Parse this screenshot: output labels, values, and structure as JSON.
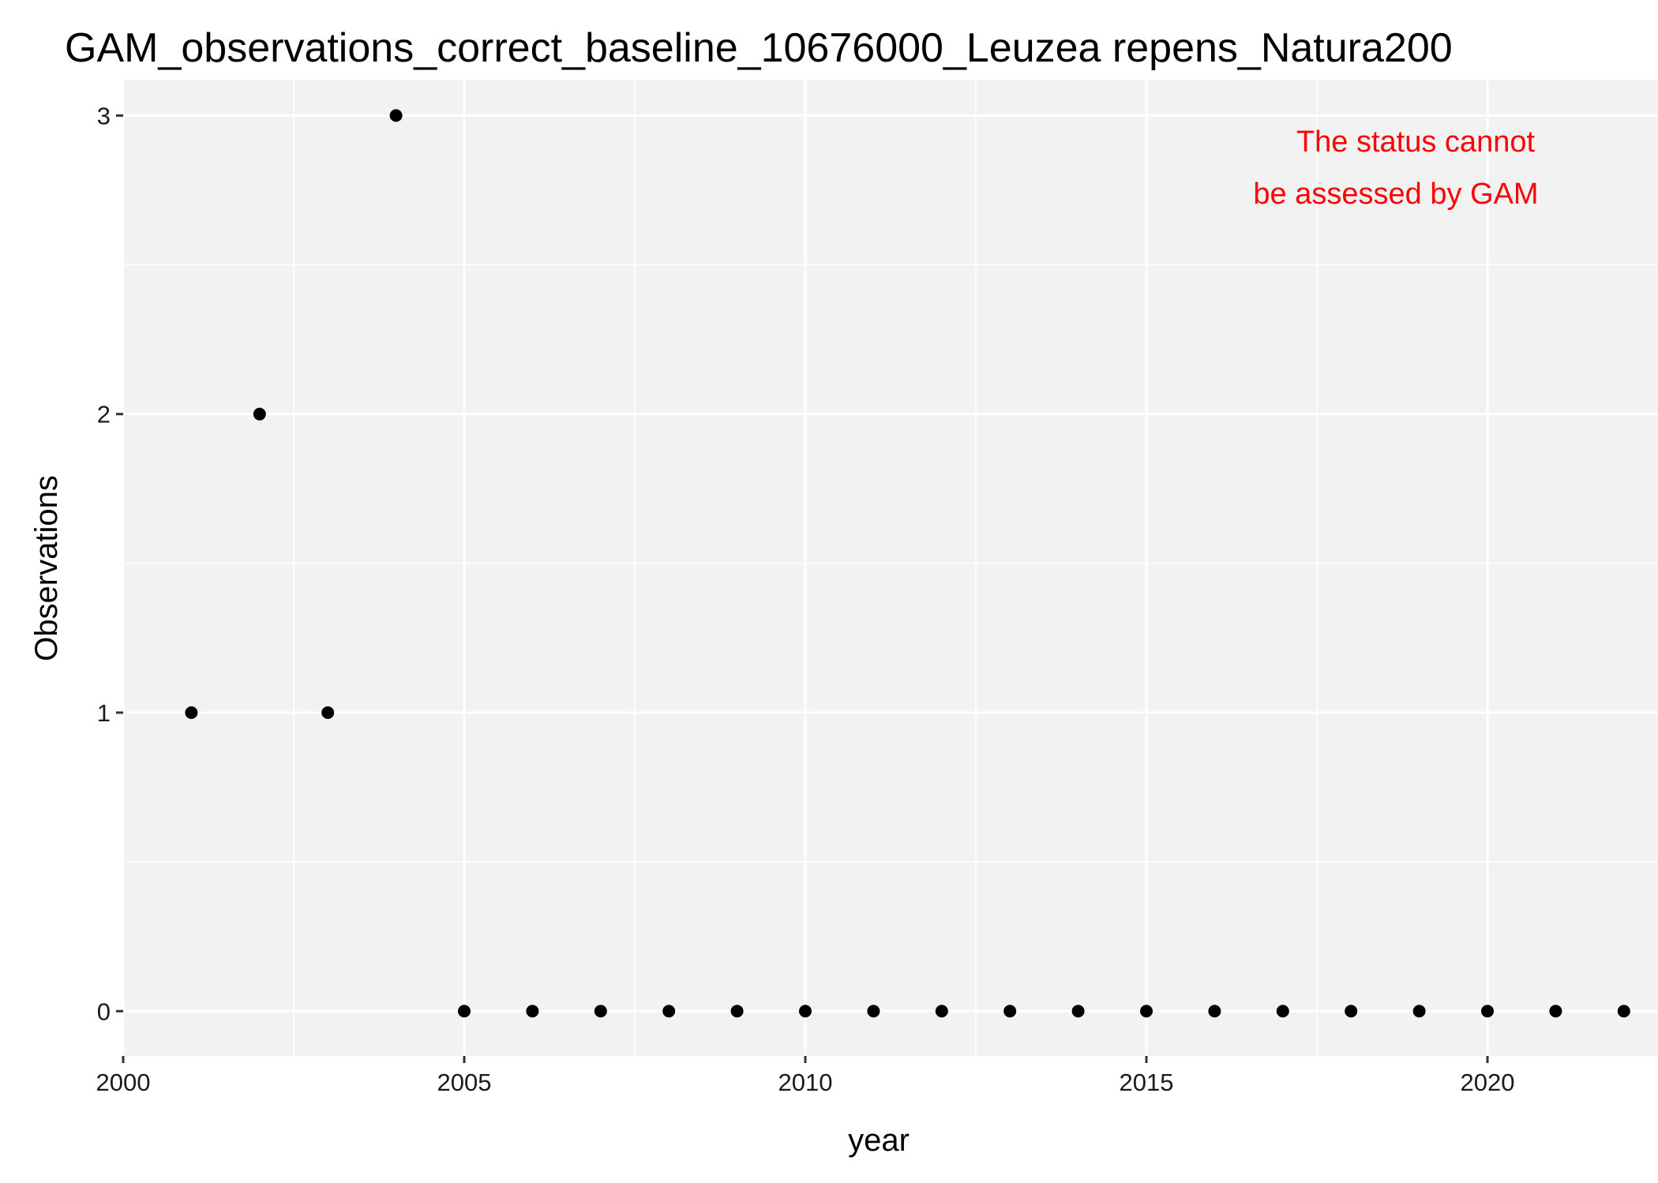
{
  "chart_data": {
    "type": "scatter",
    "title": "GAM_observations_correct_baseline_10676000_Leuzea repens_Natura200",
    "xlabel": "year",
    "ylabel": "Observations",
    "xlim": [
      2000,
      2022.5
    ],
    "ylim": [
      -0.15,
      3.12
    ],
    "x_ticks": [
      2000,
      2005,
      2010,
      2015,
      2020
    ],
    "y_ticks": [
      0,
      1,
      2,
      3
    ],
    "grid": true,
    "annotation": {
      "lines": [
        "The status cannot",
        "be assessed by GAM"
      ],
      "position": "top-right",
      "color": "#ff0000"
    },
    "colors": {
      "panel": "#f2f2f2",
      "grid": "#ffffff",
      "point": "#000000"
    },
    "points": [
      {
        "x": 2001,
        "y": 1
      },
      {
        "x": 2002,
        "y": 2
      },
      {
        "x": 2003,
        "y": 1
      },
      {
        "x": 2004,
        "y": 3
      },
      {
        "x": 2005,
        "y": 0
      },
      {
        "x": 2006,
        "y": 0
      },
      {
        "x": 2007,
        "y": 0
      },
      {
        "x": 2008,
        "y": 0
      },
      {
        "x": 2009,
        "y": 0
      },
      {
        "x": 2010,
        "y": 0
      },
      {
        "x": 2011,
        "y": 0
      },
      {
        "x": 2012,
        "y": 0
      },
      {
        "x": 2013,
        "y": 0
      },
      {
        "x": 2014,
        "y": 0
      },
      {
        "x": 2015,
        "y": 0
      },
      {
        "x": 2016,
        "y": 0
      },
      {
        "x": 2017,
        "y": 0
      },
      {
        "x": 2018,
        "y": 0
      },
      {
        "x": 2019,
        "y": 0
      },
      {
        "x": 2020,
        "y": 0
      },
      {
        "x": 2021,
        "y": 0
      },
      {
        "x": 2022,
        "y": 0
      }
    ]
  }
}
